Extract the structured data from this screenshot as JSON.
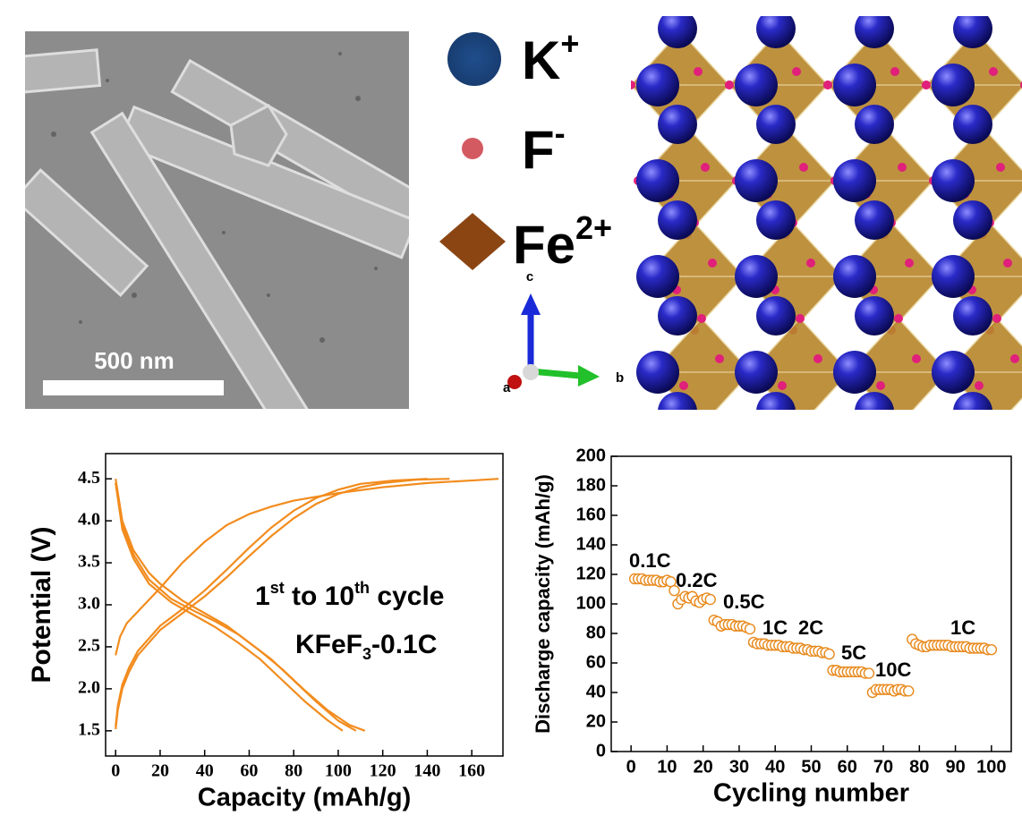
{
  "panels": {
    "sem": {
      "scale_bar": "500 nm"
    },
    "legend": [
      {
        "parts": [
          {
            "text": "K"
          },
          {
            "text": "+",
            "sup": true
          }
        ]
      },
      {
        "parts": [
          {
            "text": "F"
          },
          {
            "text": "-",
            "sup": true
          }
        ]
      },
      {
        "parts": [
          {
            "text": "Fe"
          },
          {
            "text": "2+",
            "sup": true
          }
        ]
      }
    ],
    "axes": {
      "a": "a",
      "b": "b",
      "c": "c"
    }
  },
  "chart_data": [
    {
      "type": "line",
      "xlabel": "Capacity (mAh/g)",
      "ylabel": "Potential (V)",
      "color": "#f28c1e",
      "xlim": [
        -4.5,
        174
      ],
      "xticks": [
        0,
        20,
        40,
        60,
        80,
        100,
        120,
        140,
        160
      ],
      "ylim": [
        1.2,
        4.8
      ],
      "yticks": [
        1.5,
        {
          "value": 2,
          "label": "2.0"
        },
        2.5,
        {
          "value": 3,
          "label": "3.0"
        },
        3.5,
        {
          "value": 4,
          "label": "4.0"
        },
        4.5
      ],
      "annotations": [
        {
          "parts": [
            {
              "text": "1"
            },
            {
              "text": "st",
              "sup": true
            },
            {
              "text": " to 10"
            },
            {
              "text": "th",
              "sup": true
            },
            {
              "text": " cycle"
            }
          ]
        },
        {
          "parts": [
            {
              "text": "KFeF"
            },
            {
              "text": "3",
              "sub": true
            },
            {
              "text": "-0.1C"
            }
          ]
        }
      ],
      "series": [
        {
          "x": [
            0,
            2,
            5,
            10,
            20,
            30,
            40,
            50,
            60,
            70,
            80,
            100,
            120,
            140,
            160,
            172
          ],
          "values": [
            2.4,
            2.62,
            2.78,
            2.92,
            3.2,
            3.5,
            3.75,
            3.95,
            4.08,
            4.17,
            4.24,
            4.33,
            4.4,
            4.45,
            4.48,
            4.5
          ]
        },
        {
          "x": [
            0,
            3,
            8,
            15,
            20,
            30,
            40,
            50,
            60,
            70,
            80,
            90,
            100,
            108
          ],
          "values": [
            4.5,
            4.0,
            3.65,
            3.38,
            3.25,
            3.05,
            2.9,
            2.75,
            2.55,
            2.35,
            2.1,
            1.85,
            1.62,
            1.5
          ]
        },
        {
          "x": [
            0,
            1,
            3,
            6,
            10,
            20,
            30,
            40,
            50,
            60,
            70,
            80,
            90,
            100,
            110,
            120,
            135,
            150
          ],
          "values": [
            1.52,
            1.75,
            2.0,
            2.2,
            2.4,
            2.7,
            2.9,
            3.1,
            3.33,
            3.58,
            3.82,
            4.03,
            4.2,
            4.32,
            4.4,
            4.45,
            4.49,
            4.5
          ]
        },
        {
          "x": [
            0,
            1,
            3,
            6,
            10,
            20,
            30,
            40,
            50,
            60,
            70,
            80,
            90,
            100,
            110,
            125,
            140
          ],
          "values": [
            1.55,
            1.8,
            2.05,
            2.25,
            2.45,
            2.75,
            2.95,
            3.17,
            3.42,
            3.68,
            3.92,
            4.12,
            4.27,
            4.37,
            4.44,
            4.48,
            4.5
          ]
        },
        {
          "x": [
            0,
            3,
            8,
            15,
            25,
            35,
            45,
            55,
            65,
            75,
            85,
            95,
            105,
            112
          ],
          "values": [
            4.45,
            3.95,
            3.6,
            3.3,
            3.07,
            2.93,
            2.8,
            2.65,
            2.45,
            2.23,
            1.98,
            1.75,
            1.57,
            1.5
          ]
        },
        {
          "x": [
            0,
            3,
            8,
            15,
            25,
            35,
            45,
            55,
            65,
            75,
            85,
            95,
            102
          ],
          "values": [
            4.45,
            3.9,
            3.55,
            3.25,
            3.03,
            2.88,
            2.73,
            2.55,
            2.35,
            2.1,
            1.85,
            1.63,
            1.5
          ]
        }
      ]
    },
    {
      "type": "scatter",
      "xlabel": "Cycling number",
      "ylabel": "Discharge capacity (mAh/g)",
      "color": "#e8891c",
      "xlim": [
        -5.5,
        105.5
      ],
      "xticks": [
        0,
        10,
        20,
        30,
        40,
        50,
        60,
        70,
        80,
        90,
        100
      ],
      "ylim": [
        0,
        200
      ],
      "yticks": [
        0,
        20,
        40,
        60,
        80,
        100,
        120,
        140,
        160,
        180,
        200
      ],
      "annotations": [
        "0.1C",
        "0.2C",
        "0.5C",
        "1C",
        "2C",
        "5C",
        "10C",
        "1C"
      ],
      "x": [
        1,
        2,
        3,
        4,
        5,
        6,
        7,
        8,
        9,
        10,
        11,
        12,
        13,
        14,
        15,
        16,
        17,
        18,
        19,
        20,
        21,
        22,
        23,
        24,
        25,
        26,
        27,
        28,
        29,
        30,
        31,
        32,
        33,
        34,
        35,
        36,
        37,
        38,
        39,
        40,
        41,
        42,
        43,
        44,
        45,
        46,
        47,
        48,
        49,
        50,
        51,
        52,
        53,
        54,
        55,
        56,
        57,
        58,
        59,
        60,
        61,
        62,
        63,
        64,
        65,
        66,
        67,
        68,
        69,
        70,
        71,
        72,
        73,
        74,
        75,
        76,
        77,
        78,
        79,
        80,
        81,
        82,
        83,
        84,
        85,
        86,
        87,
        88,
        89,
        90,
        91,
        92,
        93,
        94,
        95,
        96,
        97,
        98,
        99,
        100
      ],
      "values": [
        117,
        117,
        117,
        116,
        116,
        116,
        116,
        115,
        115,
        116,
        115,
        109,
        100,
        103,
        105,
        104,
        105,
        102,
        101,
        103,
        104,
        103,
        89,
        88,
        85,
        86,
        86,
        86,
        85,
        85,
        85,
        84,
        83,
        74,
        73,
        73,
        73,
        72,
        72,
        72,
        72,
        71,
        71,
        71,
        70,
        70,
        70,
        69,
        69,
        68,
        68,
        68,
        67,
        67,
        66,
        55,
        55,
        54,
        54,
        54,
        54,
        54,
        54,
        54,
        53,
        53,
        40,
        42,
        42,
        42,
        42,
        42,
        41,
        42,
        42,
        41,
        41,
        76,
        73,
        72,
        71,
        71,
        72,
        72,
        72,
        72,
        72,
        72,
        71,
        71,
        71,
        71,
        71,
        70,
        70,
        70,
        70,
        70,
        69,
        69
      ]
    }
  ]
}
